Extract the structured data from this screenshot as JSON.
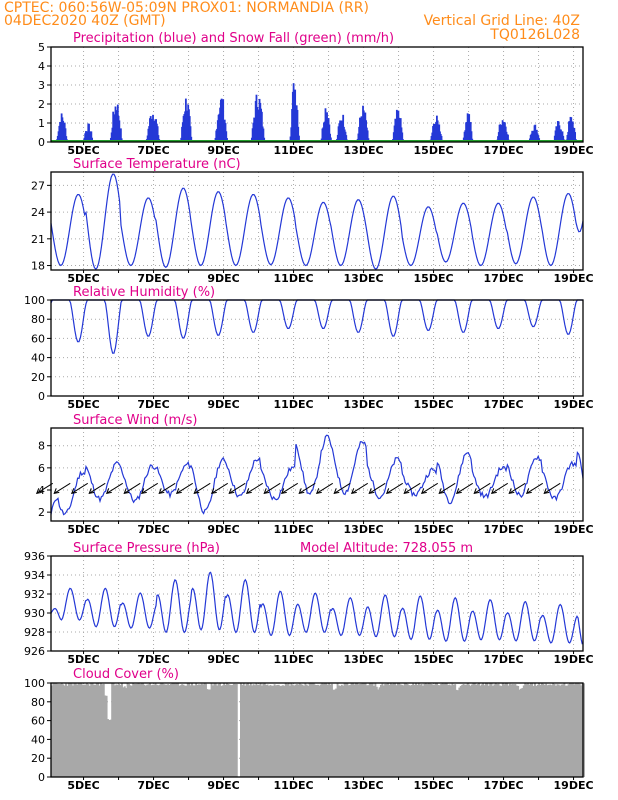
{
  "header": {
    "line1_left": "CPTEC:   060:56W-05:09N   PROX01: NORMANDIA (RR)",
    "line2_left": "04DEC2020 40Z (GMT)",
    "line2_right": "Vertical Grid Line: 40Z",
    "line3_right": "TQ0126L028"
  },
  "colors": {
    "header": "#ff8c1a",
    "panel_title": "#e0008a",
    "series_line": "#2438d6",
    "snow": "#22a02a",
    "cloud_fill": "#a8a8a8"
  },
  "chart_data": [
    {
      "id": "precip",
      "type": "bar",
      "title": "Precipitation (blue) and Snow Fall (green) (mm/h)",
      "x_tick_labels": [
        "5DEC",
        "7DEC",
        "9DEC",
        "11DEC",
        "13DEC",
        "15DEC",
        "17DEC",
        "19DEC"
      ],
      "ylim": [
        0,
        5
      ],
      "yticks": [
        0,
        1,
        2,
        3,
        4,
        5
      ],
      "grid": true,
      "series": [
        {
          "name": "Precipitation",
          "color": "#2438d6",
          "bursts": [
            [
              0.3,
              1.6
            ],
            [
              1.05,
              1.0
            ],
            [
              1.85,
              2.4
            ],
            [
              2.9,
              1.9
            ],
            [
              3.85,
              2.6
            ],
            [
              4.85,
              2.6
            ],
            [
              5.9,
              2.8
            ],
            [
              6.95,
              3.6
            ],
            [
              7.85,
              2.2
            ],
            [
              8.3,
              1.6
            ],
            [
              8.9,
              2.0
            ],
            [
              9.9,
              1.8
            ],
            [
              11.0,
              1.4
            ],
            [
              11.9,
              1.8
            ],
            [
              12.9,
              1.5
            ],
            [
              13.8,
              1.0
            ],
            [
              14.5,
              1.2
            ],
            [
              14.85,
              1.5
            ]
          ]
        },
        {
          "name": "Snow Fall",
          "color": "#22a02a",
          "values": [
            0
          ]
        }
      ]
    },
    {
      "id": "temperature",
      "type": "line",
      "title": "Surface Temperature (nC)",
      "x_tick_labels": [
        "5DEC",
        "7DEC",
        "9DEC",
        "11DEC",
        "13DEC",
        "15DEC",
        "17DEC",
        "19DEC"
      ],
      "ylim": [
        17.5,
        28.5
      ],
      "yticks": [
        18,
        21,
        24,
        27
      ],
      "grid": true,
      "daily_peaks": [
        26.0,
        28.3,
        25.6,
        26.7,
        26.3,
        26.0,
        25.6,
        25.1,
        25.4,
        25.8,
        24.6,
        25.0,
        25.0,
        25.7,
        26.1,
        26.3
      ],
      "daily_mins": [
        18.0,
        17.6,
        18.0,
        17.8,
        18.0,
        18.0,
        18.1,
        18.0,
        18.0,
        17.6,
        18.0,
        18.4,
        18.0,
        18.2,
        18.0,
        18.2
      ],
      "end_value": 23.0
    },
    {
      "id": "humidity",
      "type": "line",
      "title": "Relative Humidity (%)",
      "x_tick_labels": [
        "5DEC",
        "7DEC",
        "9DEC",
        "11DEC",
        "13DEC",
        "15DEC",
        "17DEC",
        "19DEC"
      ],
      "ylim": [
        0,
        100
      ],
      "yticks": [
        0,
        20,
        40,
        60,
        80,
        100
      ],
      "grid": true,
      "daily_mins": [
        56,
        44,
        62,
        60,
        63,
        66,
        70,
        70,
        66,
        62,
        68,
        66,
        70,
        72,
        64,
        58,
        52
      ]
    },
    {
      "id": "wind",
      "type": "line",
      "title": "Surface Wind (m/s)",
      "x_tick_labels": [
        "5DEC",
        "7DEC",
        "9DEC",
        "11DEC",
        "13DEC",
        "15DEC",
        "17DEC",
        "19DEC"
      ],
      "ylim": [
        1.2,
        9.6
      ],
      "yticks": [
        2,
        4,
        6,
        8
      ],
      "grid": true,
      "daily_peaks": [
        5.6,
        6.4,
        6.2,
        6.3,
        6.7,
        6.8,
        6.0,
        8.8,
        8.3,
        6.8,
        5.8,
        7.4,
        6.0,
        7.0,
        6.4,
        8.5,
        5.8
      ],
      "daily_mins": [
        1.8,
        3.2,
        3.0,
        3.6,
        2.0,
        3.4,
        3.2,
        3.6,
        3.8,
        3.4,
        3.6,
        3.0,
        3.4,
        3.5,
        3.2,
        3.6,
        3.8
      ],
      "start_value": 1.8,
      "end_value": 4.0,
      "wind_vectors": "from northeast, 2 per day"
    },
    {
      "id": "pressure",
      "type": "line",
      "title": "Surface Pressure (hPa)",
      "annotation": "Model Altitude: 728.055 m",
      "x_tick_labels": [
        "5DEC",
        "7DEC",
        "9DEC",
        "11DEC",
        "13DEC",
        "15DEC",
        "17DEC",
        "19DEC"
      ],
      "ylim": [
        926,
        936
      ],
      "yticks": [
        926,
        928,
        930,
        932,
        934,
        936
      ],
      "grid": true,
      "daily_peaks": [
        932.6,
        932.6,
        932.1,
        933.5,
        934.3,
        933.5,
        932.3,
        932.1,
        931.6,
        931.9,
        931.8,
        931.6,
        931.4,
        931.2,
        930.9,
        930.8,
        930.2
      ],
      "daily_mins": [
        928.8,
        928.0,
        927.9,
        927.2,
        927.4,
        927.2,
        927.0,
        927.4,
        927.1,
        926.9,
        926.6,
        926.4,
        926.6,
        926.5,
        926.3,
        926.4,
        926.2
      ],
      "start_value": 930.0,
      "end_value": 926.5
    },
    {
      "id": "cloud",
      "type": "area",
      "title": "Cloud Cover (%)",
      "x_tick_labels": [
        "5DEC",
        "7DEC",
        "9DEC",
        "11DEC",
        "13DEC",
        "15DEC",
        "17DEC",
        "19DEC"
      ],
      "ylim": [
        0,
        100
      ],
      "yticks": [
        0,
        20,
        40,
        60,
        80,
        100
      ],
      "grid": true,
      "typical_value": 98,
      "dips": [
        [
          1.65,
          58
        ],
        [
          1.55,
          86
        ],
        [
          2.1,
          93
        ],
        [
          4.5,
          92
        ],
        [
          8.1,
          92
        ],
        [
          9.3,
          93
        ],
        [
          11.6,
          92
        ],
        [
          13.4,
          92
        ]
      ],
      "gap_days": [
        5.35
      ]
    }
  ]
}
